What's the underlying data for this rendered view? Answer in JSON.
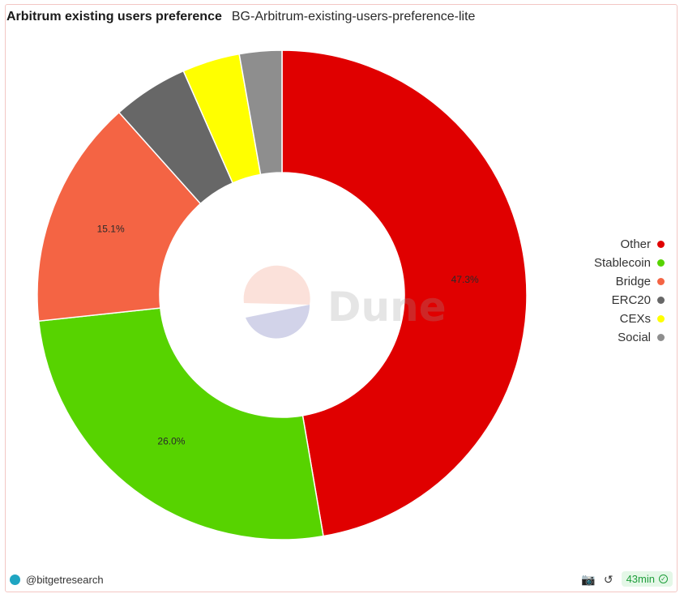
{
  "header": {
    "title": "Arbitrum existing users preference",
    "subtitle": "BG-Arbitrum-existing-users-preference-lite"
  },
  "chart_data": {
    "type": "pie",
    "donut": true,
    "categories": [
      "Other",
      "Stablecoin",
      "Bridge",
      "ERC20",
      "CEXs",
      "Social"
    ],
    "values": [
      47.3,
      26.0,
      15.1,
      5.0,
      3.8,
      2.8
    ],
    "colors": [
      "#e00000",
      "#57d300",
      "#f46444",
      "#676767",
      "#ffff00",
      "#8e8e8e"
    ],
    "data_labels": [
      "47.3%",
      "26.0%",
      "15.1%",
      "",
      "",
      ""
    ],
    "legend_position": "right",
    "watermark": "Dune"
  },
  "footer": {
    "author": "@bitgetresearch",
    "refresh_badge": "43min",
    "camera_icon": "camera-icon",
    "refresh_icon": "refresh-icon",
    "check_icon": "check-circle-icon"
  }
}
